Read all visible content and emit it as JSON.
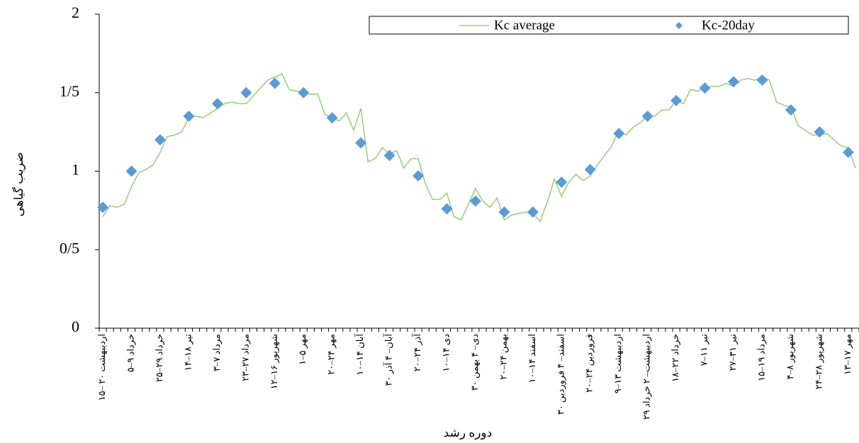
{
  "chart_data": {
    "type": "line",
    "y_label": "ضریب گیاهی",
    "x_label": "دوره رشد",
    "ylim": [
      0,
      2
    ],
    "yticks": [
      0,
      {
        "value": 0.5,
        "label": "0/5"
      },
      1,
      {
        "value": 1.5,
        "label": "1/5"
      },
      2
    ],
    "categories": [
      "۱۵– ۲۰ اردیبهشت",
      null,
      null,
      null,
      "۵–۹ خرداد",
      null,
      null,
      null,
      "۲۵–۲۹ خرداد",
      null,
      null,
      null,
      "۱۴–۱۸ تیر",
      null,
      null,
      null,
      "۳–۷ مرداد",
      null,
      null,
      null,
      "۲۳–۲۷ مرداد",
      null,
      null,
      null,
      "۱۲–۱۶ شهریور",
      null,
      null,
      null,
      "۱–۵ مهر",
      null,
      null,
      null,
      "۲۰–۲۴ مهر",
      null,
      null,
      null,
      "۱۰–۱۴ آبان",
      null,
      null,
      null,
      "۳۰ آبان– ۴ آذر",
      null,
      null,
      null,
      "۲۰–۲۴ آذر",
      null,
      null,
      null,
      "۱۰–۱۴ دی",
      null,
      null,
      null,
      "۳۰ دی– ۴ بهمن",
      null,
      null,
      null,
      "۲۰–۲۴ بهمن",
      null,
      null,
      null,
      "۱۰–۱۴ اسفند",
      null,
      null,
      null,
      "۳۰ اسفند– ۴ فروردین",
      null,
      null,
      null,
      "۲۰–۲۴ فروردین",
      null,
      null,
      null,
      "۹–۱۳ اردیبهشت",
      null,
      null,
      null,
      "۲۹ اردیبهشت– ۲ خرداد",
      null,
      null,
      null,
      "۱۸–۲۲ خرداد",
      null,
      null,
      null,
      "۷–۱۱ تیر",
      null,
      null,
      null,
      "۲۷–۳۱ تیر",
      null,
      null,
      null,
      "۱۵–۱۹ مرداد",
      null,
      null,
      null,
      "۴–۸ شهریور",
      null,
      null,
      null,
      "۲۴–۲۸ شهریور",
      null,
      null,
      null,
      "۱۳–۱۷ مهر",
      null
    ],
    "series": [
      {
        "name": "Kc average",
        "color": "#9bcf80",
        "marker": "line",
        "values": [
          0.71,
          0.78,
          0.77,
          0.79,
          0.9,
          0.99,
          1.01,
          1.04,
          1.12,
          1.22,
          1.23,
          1.25,
          1.34,
          1.35,
          1.34,
          1.37,
          1.4,
          1.43,
          1.44,
          1.43,
          1.43,
          1.48,
          1.53,
          1.58,
          1.6,
          1.62,
          1.52,
          1.51,
          1.5,
          1.49,
          1.49,
          1.36,
          1.34,
          1.32,
          1.37,
          1.26,
          1.4,
          1.06,
          1.08,
          1.15,
          1.11,
          1.13,
          1.02,
          1.08,
          1.08,
          0.92,
          0.82,
          0.82,
          0.86,
          0.71,
          0.69,
          0.79,
          0.89,
          0.81,
          0.77,
          0.83,
          0.69,
          0.72,
          0.73,
          0.74,
          0.73,
          0.68,
          0.8,
          0.95,
          0.84,
          0.93,
          0.98,
          0.94,
          0.97,
          1.04,
          1.1,
          1.16,
          1.26,
          1.23,
          1.28,
          1.31,
          1.35,
          1.35,
          1.39,
          1.39,
          1.45,
          1.43,
          1.52,
          1.51,
          1.53,
          1.54,
          1.54,
          1.56,
          1.54,
          1.58,
          1.59,
          1.58,
          1.6,
          1.58,
          1.44,
          1.42,
          1.41,
          1.29,
          1.26,
          1.23,
          1.23,
          1.24,
          1.2,
          1.16,
          1.15,
          1.02
        ]
      },
      {
        "name": "Kc-20day",
        "color": "#5b9bd5",
        "marker": "diamond",
        "values": [
          0.77,
          null,
          null,
          null,
          1.0,
          null,
          null,
          null,
          1.2,
          null,
          null,
          null,
          1.35,
          null,
          null,
          null,
          1.43,
          null,
          null,
          null,
          1.5,
          null,
          null,
          null,
          1.56,
          null,
          null,
          null,
          1.5,
          null,
          null,
          null,
          1.34,
          null,
          null,
          null,
          1.18,
          null,
          null,
          null,
          1.1,
          null,
          null,
          null,
          0.97,
          null,
          null,
          null,
          0.76,
          null,
          null,
          null,
          0.81,
          null,
          null,
          null,
          0.74,
          null,
          null,
          null,
          0.74,
          null,
          null,
          null,
          0.93,
          null,
          null,
          null,
          1.01,
          null,
          null,
          null,
          1.24,
          null,
          null,
          null,
          1.35,
          null,
          null,
          null,
          1.45,
          null,
          null,
          null,
          1.53,
          null,
          null,
          null,
          1.57,
          null,
          null,
          null,
          1.58,
          null,
          null,
          null,
          1.39,
          null,
          null,
          null,
          1.25,
          null,
          null,
          null,
          1.12,
          null
        ]
      }
    ]
  }
}
